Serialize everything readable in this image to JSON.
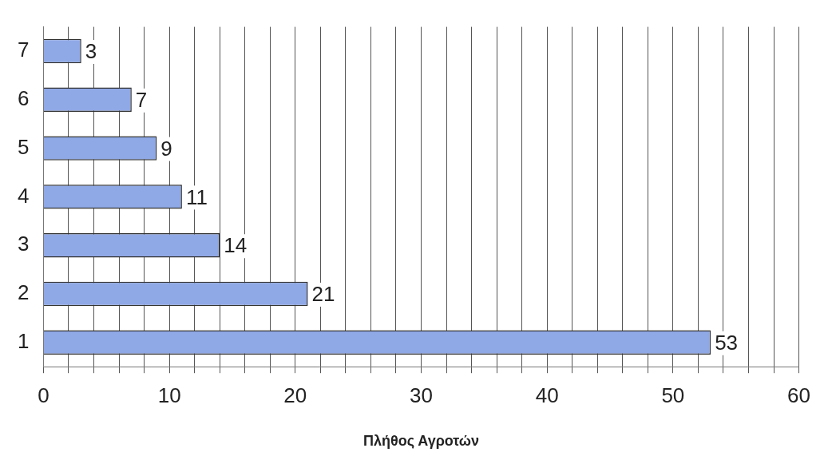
{
  "chart_data": {
    "type": "bar",
    "orientation": "horizontal",
    "xlabel": "Πλήθος Αγροτών",
    "categories": [
      "7",
      "6",
      "5",
      "4",
      "3",
      "2",
      "1"
    ],
    "values": [
      3,
      7,
      9,
      11,
      14,
      21,
      53
    ],
    "color": "#8fa8e6",
    "xlim": [
      0,
      60
    ],
    "xticks": [
      0,
      {
        "value": 2,
        "label": null
      },
      {
        "value": 4,
        "label": null
      },
      {
        "value": 6,
        "label": null
      },
      {
        "value": 8,
        "label": null
      },
      10,
      {
        "value": 12,
        "label": null
      },
      {
        "value": 14,
        "label": null
      },
      {
        "value": 16,
        "label": null
      },
      {
        "value": 18,
        "label": null
      },
      20,
      {
        "value": 22,
        "label": null
      },
      {
        "value": 24,
        "label": null
      },
      {
        "value": 26,
        "label": null
      },
      {
        "value": 28,
        "label": null
      },
      30,
      {
        "value": 32,
        "label": null
      },
      {
        "value": 34,
        "label": null
      },
      {
        "value": 36,
        "label": null
      },
      {
        "value": 38,
        "label": null
      },
      40,
      {
        "value": 42,
        "label": null
      },
      {
        "value": 44,
        "label": null
      },
      {
        "value": 46,
        "label": null
      },
      {
        "value": 48,
        "label": null
      },
      50,
      {
        "value": 52,
        "label": null
      },
      {
        "value": 54,
        "label": null
      },
      {
        "value": 56,
        "label": null
      },
      {
        "value": 58,
        "label": null
      },
      60
    ],
    "grid": "x",
    "data_labels": true,
    "legend": false
  }
}
